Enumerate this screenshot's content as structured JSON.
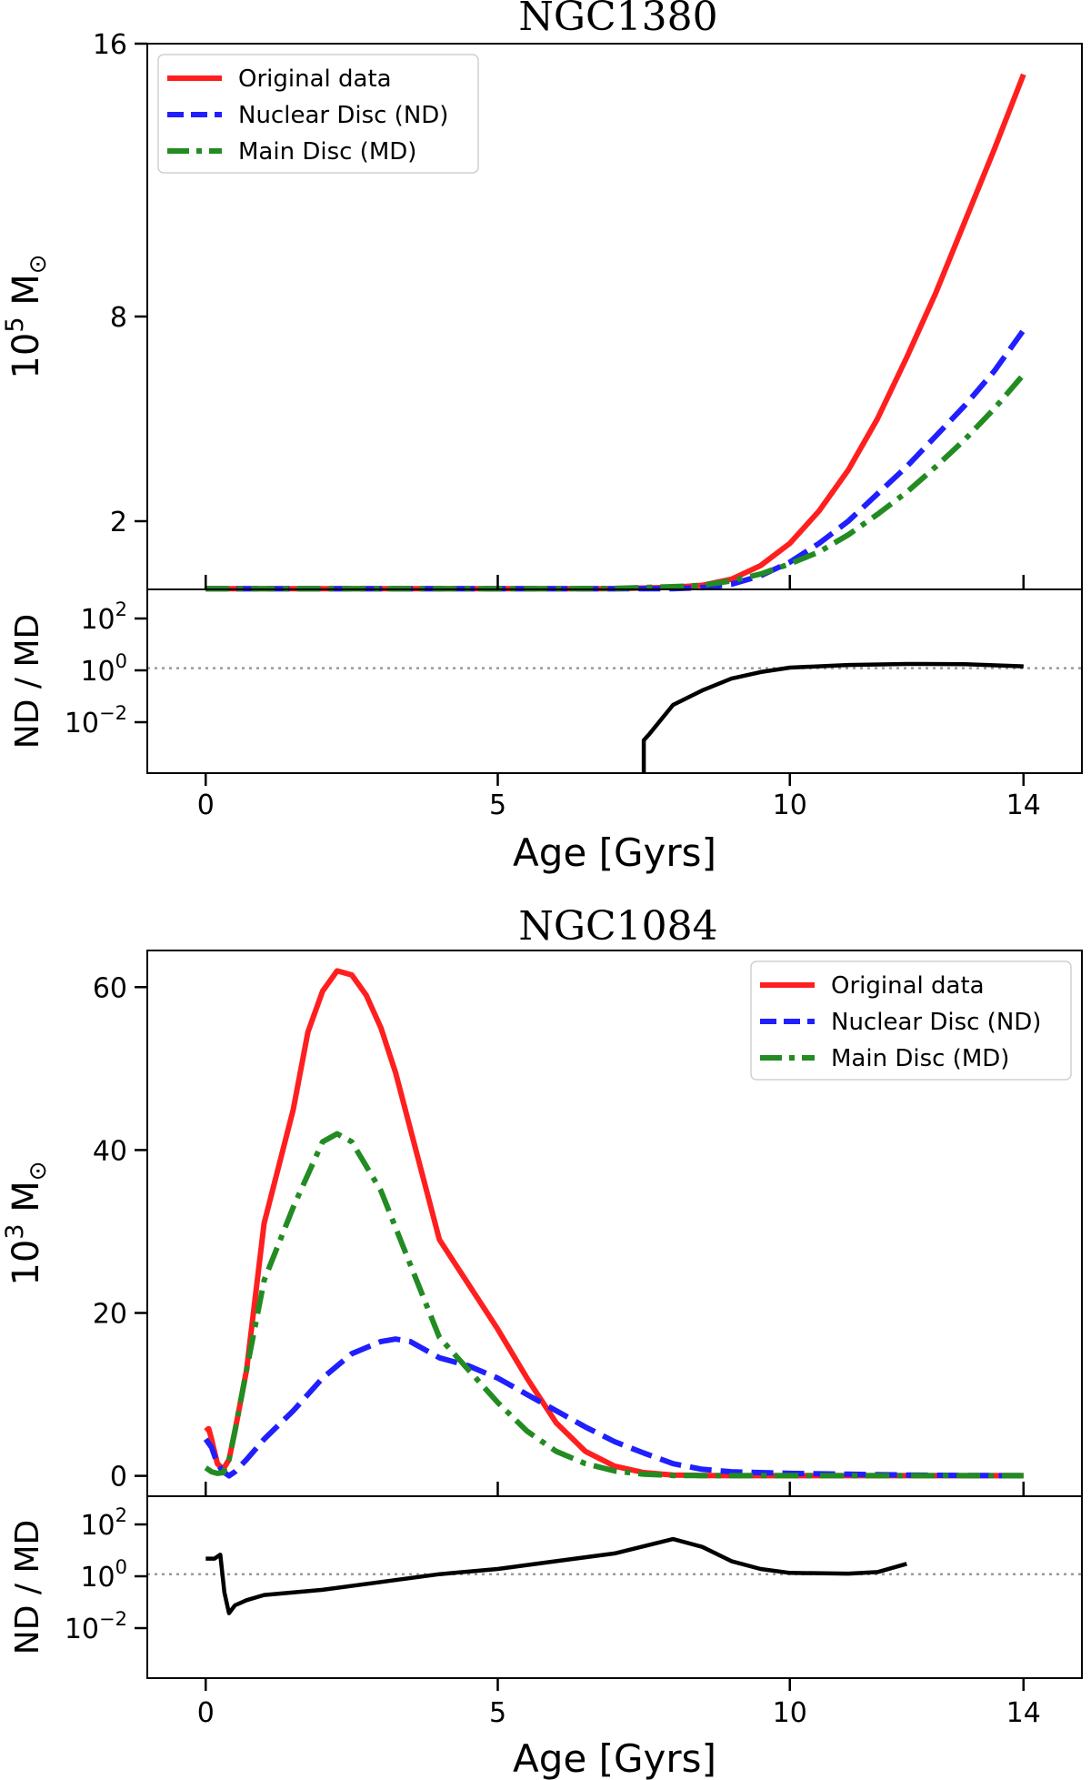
{
  "chart_data": [
    {
      "type": "line",
      "title": "NGC1380",
      "xlabel": "Age [Gyrs]",
      "ylabel": "10^5 M_sun",
      "ylabel_base": "10",
      "ylabel_exp": "5",
      "ylabel_unit": "M",
      "ylabel_sym": "⊙",
      "xlim": [
        -1,
        15
      ],
      "ylim": [
        0,
        16
      ],
      "xticks": [
        0,
        5,
        10,
        14
      ],
      "xtick_labels": [
        "0",
        "5",
        "10",
        "14"
      ],
      "yticks": [
        2,
        8,
        16
      ],
      "ytick_labels": [
        "2",
        "8",
        "16"
      ],
      "legend": "top-left",
      "series": [
        {
          "name": "Original data",
          "color": "#ff1f1f",
          "style": "solid",
          "x": [
            0,
            2,
            4,
            6,
            7,
            8,
            8.5,
            9,
            9.5,
            10,
            10.5,
            11,
            11.5,
            12,
            12.5,
            13,
            13.5,
            14
          ],
          "y": [
            0.02,
            0.02,
            0.02,
            0.02,
            0.02,
            0.06,
            0.12,
            0.3,
            0.7,
            1.35,
            2.3,
            3.5,
            5.0,
            6.8,
            8.7,
            10.8,
            12.9,
            15.1
          ]
        },
        {
          "name": "Nuclear Disc (ND)",
          "color": "#1f1fff",
          "style": "dashed",
          "x": [
            0,
            2,
            4,
            6,
            7,
            8,
            8.5,
            9,
            9.5,
            10,
            10.5,
            11,
            11.5,
            12,
            12.5,
            13,
            13.5,
            14
          ],
          "y": [
            0.02,
            0.02,
            0.02,
            0.02,
            0.02,
            0.02,
            0.05,
            0.15,
            0.4,
            0.8,
            1.35,
            2.0,
            2.8,
            3.6,
            4.5,
            5.4,
            6.4,
            7.6
          ]
        },
        {
          "name": "Main Disc (MD)",
          "color": "#228B22",
          "style": "dashdot",
          "x": [
            0,
            2,
            4,
            6,
            7,
            8,
            8.5,
            9,
            9.5,
            10,
            10.5,
            11,
            11.5,
            12,
            12.5,
            13,
            13.5,
            14
          ],
          "y": [
            0.02,
            0.02,
            0.02,
            0.02,
            0.03,
            0.08,
            0.12,
            0.25,
            0.45,
            0.75,
            1.1,
            1.6,
            2.2,
            2.85,
            3.6,
            4.4,
            5.3,
            6.3
          ]
        }
      ],
      "ratio_panel": {
        "ylabel": "ND / MD",
        "ytick_labels": [
          {
            "base": "10",
            "exp": "2"
          },
          {
            "base": "10",
            "exp": "0"
          },
          {
            "base": "10",
            "exp": "−2"
          }
        ],
        "ylim_log10": [
          -4,
          3
        ],
        "reference_line": 1,
        "x": [
          7.5,
          7.5,
          7.6,
          8,
          8.5,
          9,
          9.5,
          10,
          11,
          12,
          13,
          14
        ],
        "log10_ratio": [
          -4,
          -2.75,
          -2.5,
          -1.4,
          -0.85,
          -0.4,
          -0.15,
          0.02,
          0.12,
          0.16,
          0.15,
          0.07
        ]
      }
    },
    {
      "type": "line",
      "title": "NGC1084",
      "xlabel": "Age [Gyrs]",
      "ylabel": "10^3 M_sun",
      "ylabel_base": "10",
      "ylabel_exp": "3",
      "ylabel_unit": "M",
      "ylabel_sym": "⊙",
      "xlim": [
        -1,
        15
      ],
      "ylim": [
        -2.5,
        64.5
      ],
      "xticks": [
        0,
        5,
        10,
        14
      ],
      "xtick_labels": [
        "0",
        "5",
        "10",
        "14"
      ],
      "yticks": [
        0,
        20,
        40,
        60
      ],
      "ytick_labels": [
        "0",
        "20",
        "40",
        "60"
      ],
      "legend": "top-right",
      "series": [
        {
          "name": "Original data",
          "color": "#ff1f1f",
          "style": "solid",
          "x": [
            0,
            0.05,
            0.1,
            0.2,
            0.3,
            0.4,
            0.5,
            0.7,
            1.0,
            1.5,
            1.75,
            2.0,
            2.25,
            2.5,
            2.75,
            3.0,
            3.25,
            4.0,
            5.0,
            5.5,
            6.0,
            6.5,
            7.0,
            7.5,
            8.0,
            8.5,
            9,
            10,
            11,
            12,
            13,
            14
          ],
          "y": [
            5.5,
            5.8,
            4.5,
            1.5,
            0.8,
            2.0,
            5.5,
            13.0,
            31.0,
            45.0,
            54.5,
            59.5,
            62.0,
            61.5,
            59.0,
            55.0,
            49.5,
            29.0,
            18.0,
            12.0,
            6.5,
            3.0,
            1.2,
            0.4,
            0.1,
            0.05,
            0.02,
            0.02,
            0.02,
            0.02,
            0.02,
            0.02
          ]
        },
        {
          "name": "Nuclear Disc (ND)",
          "color": "#1f1fff",
          "style": "dashed",
          "x": [
            0,
            0.1,
            0.2,
            0.3,
            0.4,
            0.5,
            0.7,
            1.0,
            1.5,
            2.0,
            2.5,
            3.0,
            3.25,
            3.5,
            4.0,
            4.5,
            5.0,
            5.5,
            6.0,
            6.5,
            7.0,
            7.5,
            8.0,
            8.5,
            9.0,
            10,
            11,
            12,
            13,
            14
          ],
          "y": [
            4.5,
            3.5,
            1.5,
            0.5,
            0.0,
            0.5,
            2.0,
            4.5,
            8.0,
            12.0,
            15.0,
            16.5,
            16.8,
            16.5,
            14.5,
            13.5,
            12.0,
            10.0,
            8.0,
            6.0,
            4.2,
            2.8,
            1.5,
            0.8,
            0.5,
            0.3,
            0.2,
            0.1,
            0.05,
            0.02
          ]
        },
        {
          "name": "Main Disc (MD)",
          "color": "#228B22",
          "style": "dashdot",
          "x": [
            0,
            0.1,
            0.2,
            0.3,
            0.4,
            0.5,
            0.7,
            1.0,
            1.5,
            2.0,
            2.25,
            2.5,
            3.0,
            3.5,
            4.0,
            4.5,
            5.0,
            5.5,
            6.0,
            6.5,
            7.0,
            7.5,
            8.0,
            9,
            10,
            11,
            12,
            13,
            14
          ],
          "y": [
            1.0,
            0.5,
            0.3,
            0.4,
            2.0,
            5.5,
            13.0,
            24.0,
            33.0,
            41.0,
            42.0,
            41.0,
            35.0,
            26.0,
            17.0,
            13.0,
            9.0,
            5.5,
            3.0,
            1.5,
            0.6,
            0.2,
            0.05,
            0.02,
            0.02,
            0.02,
            0.02,
            0.02,
            0.02
          ]
        }
      ],
      "ratio_panel": {
        "ylabel": "ND / MD",
        "ytick_labels": [
          {
            "base": "10",
            "exp": "2"
          },
          {
            "base": "10",
            "exp": "0"
          },
          {
            "base": "10",
            "exp": "−2"
          }
        ],
        "ylim_log10": [
          -4,
          3
        ],
        "reference_line": 1,
        "x": [
          0,
          0.15,
          0.25,
          0.32,
          0.4,
          0.5,
          0.7,
          1.0,
          2,
          3,
          4,
          5,
          6,
          7,
          8,
          8.5,
          9,
          9.5,
          10,
          11,
          11.5,
          12
        ],
        "log10_ratio": [
          0.6,
          0.6,
          0.75,
          -0.7,
          -1.5,
          -1.2,
          -1.0,
          -0.8,
          -0.6,
          -0.3,
          0.0,
          0.2,
          0.5,
          0.8,
          1.35,
          1.05,
          0.5,
          0.2,
          0.05,
          0.02,
          0.08,
          0.4
        ]
      }
    }
  ]
}
